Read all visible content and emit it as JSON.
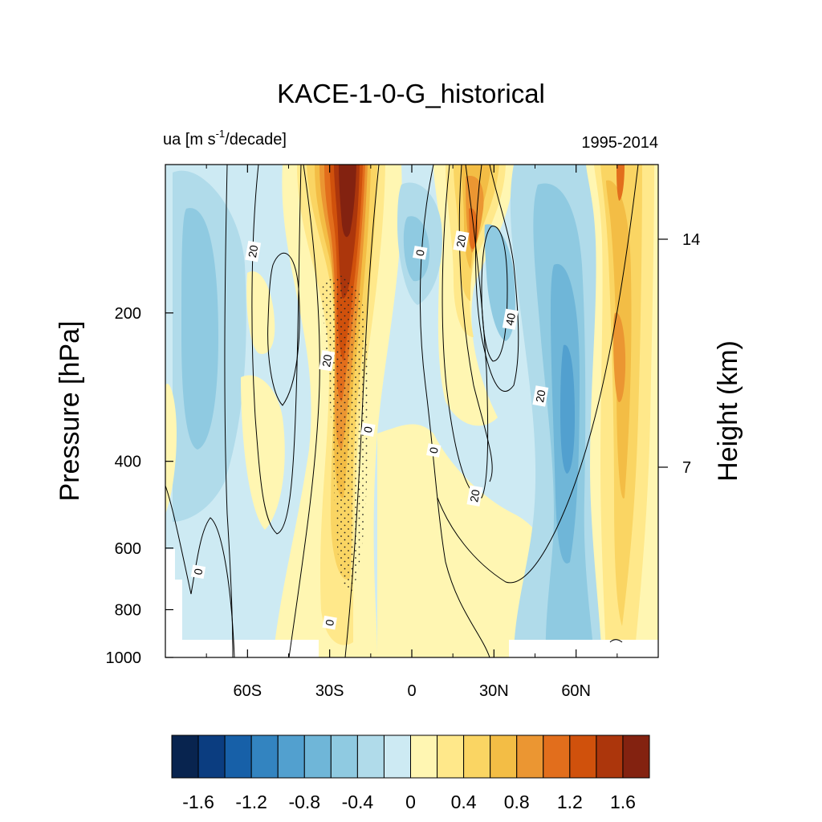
{
  "chart_data": {
    "type": "heatmap",
    "title": "KACE-1-0-G_historical",
    "subtitle_left": "ua [m s",
    "subtitle_left_sup": "-1",
    "subtitle_left_tail": "/decade]",
    "subtitle_right": "1995-2014",
    "ylabel": "Pressure [hPa]",
    "ylabel_right": "Height (km)",
    "xlim": [
      -90,
      90
    ],
    "ylim": [
      1000,
      100
    ],
    "y_scale": "log",
    "x_ticks": [
      -60,
      -30,
      0,
      30,
      60
    ],
    "x_tick_labels": [
      "60S",
      "30S",
      "0",
      "30N",
      "60N"
    ],
    "y_ticks": [
      1000,
      800,
      600,
      400,
      200
    ],
    "y_tick_labels": [
      "1000",
      "800",
      "600",
      "400",
      "200"
    ],
    "y_right_ticks": [
      14,
      7
    ],
    "y_right_tick_labels": [
      "14",
      "7"
    ],
    "colorbar": {
      "levels": [
        -1.8,
        -1.6,
        -1.4,
        -1.2,
        -1.0,
        -0.8,
        -0.6,
        -0.4,
        -0.2,
        0,
        0.2,
        0.4,
        0.6,
        0.8,
        1.0,
        1.2,
        1.4,
        1.6,
        1.8
      ],
      "label_values": [
        "-1.6",
        "-1.2",
        "-0.8",
        "-0.4",
        "0",
        "0.4",
        "0.8",
        "1.2",
        "1.6"
      ],
      "colors": [
        "#08244f",
        "#0b3d80",
        "#1760a8",
        "#3384c0",
        "#52a0cf",
        "#6fb6d8",
        "#8fcae1",
        "#b0dbea",
        "#cdeaf3",
        "#fff6b2",
        "#ffe88a",
        "#fad563",
        "#f3bd45",
        "#eb9632",
        "#e26e1c",
        "#d0510c",
        "#ac360c",
        "#832210"
      ]
    },
    "contour_labels": [
      {
        "text": "20",
        "lon": -58,
        "p": 150
      },
      {
        "text": "20",
        "lon": -31,
        "p": 250
      },
      {
        "text": "0",
        "lon": -16,
        "p": 345
      },
      {
        "text": "0",
        "lon": 3,
        "p": 151
      },
      {
        "text": "20",
        "lon": 18,
        "p": 143
      },
      {
        "text": "40",
        "lon": 36,
        "p": 206
      },
      {
        "text": "20",
        "lon": 47,
        "p": 295
      },
      {
        "text": "0",
        "lon": 8,
        "p": 380
      },
      {
        "text": "20",
        "lon": 23,
        "p": 470
      },
      {
        "text": "0",
        "lon": -78,
        "p": 670
      },
      {
        "text": "0",
        "lon": -30,
        "p": 850
      }
    ]
  }
}
